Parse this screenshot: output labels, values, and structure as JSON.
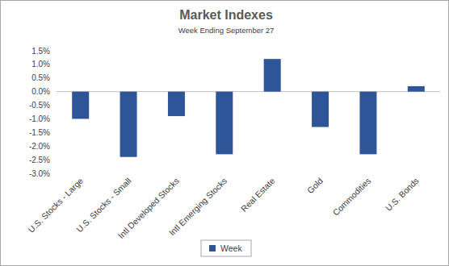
{
  "chart_data": {
    "type": "bar",
    "title": "Market Indexes",
    "subtitle": "Week Ending September 27",
    "categories": [
      "U.S. Stocks - Large",
      "U.S. Stocks - Small",
      "Intl Developed Stocks",
      "Intl Emerging Stocks",
      "Real Estate",
      "Gold",
      "Commodities",
      "U.S. Bonds"
    ],
    "series": [
      {
        "name": "Week",
        "color": "#2e5597",
        "values": [
          -1.0,
          -2.4,
          -0.9,
          -2.3,
          1.2,
          -1.3,
          -2.3,
          0.2
        ]
      }
    ],
    "ylim": [
      -3.0,
      1.5
    ],
    "yticks": [
      {
        "value": -3.0,
        "label": "-3.0%"
      },
      {
        "value": -2.5,
        "label": "-2.5%"
      },
      {
        "value": -2.0,
        "label": "-2.0%"
      },
      {
        "value": -1.5,
        "label": "-1.5%"
      },
      {
        "value": -1.0,
        "label": "-1.0%"
      },
      {
        "value": -0.5,
        "label": "-0.5%"
      },
      {
        "value": 0.0,
        "label": "0.0%"
      },
      {
        "value": 0.5,
        "label": "0.5%"
      },
      {
        "value": 1.0,
        "label": "1.0%"
      },
      {
        "value": 1.5,
        "label": "1.5%"
      }
    ],
    "grid": false,
    "legend": "bottom"
  }
}
